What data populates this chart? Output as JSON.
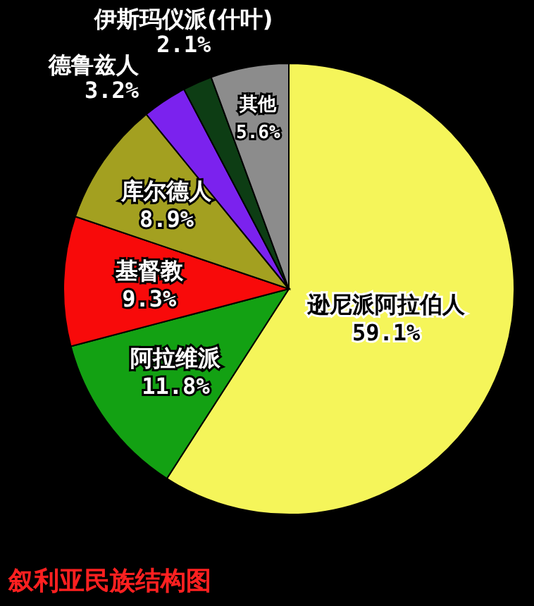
{
  "chart_data": {
    "type": "pie",
    "title": "叙利亚民族结构图",
    "categories": [
      "逊尼派阿拉伯人",
      "阿拉维派",
      "基督教",
      "库尔德人",
      "德鲁兹人",
      "伊斯玛仪派(什叶)",
      "其他"
    ],
    "values": [
      59.1,
      11.8,
      9.3,
      8.9,
      3.2,
      2.1,
      5.6
    ],
    "value_labels": [
      "59.1%",
      "11.8%",
      "9.3%",
      "8.9%",
      "3.2%",
      "2.1%",
      "5.6%"
    ],
    "colors": [
      "#f5f55a",
      "#13a113",
      "#f80a0a",
      "#a3a020",
      "#7b22ee",
      "#0d3d14",
      "#8c8c8c"
    ]
  }
}
